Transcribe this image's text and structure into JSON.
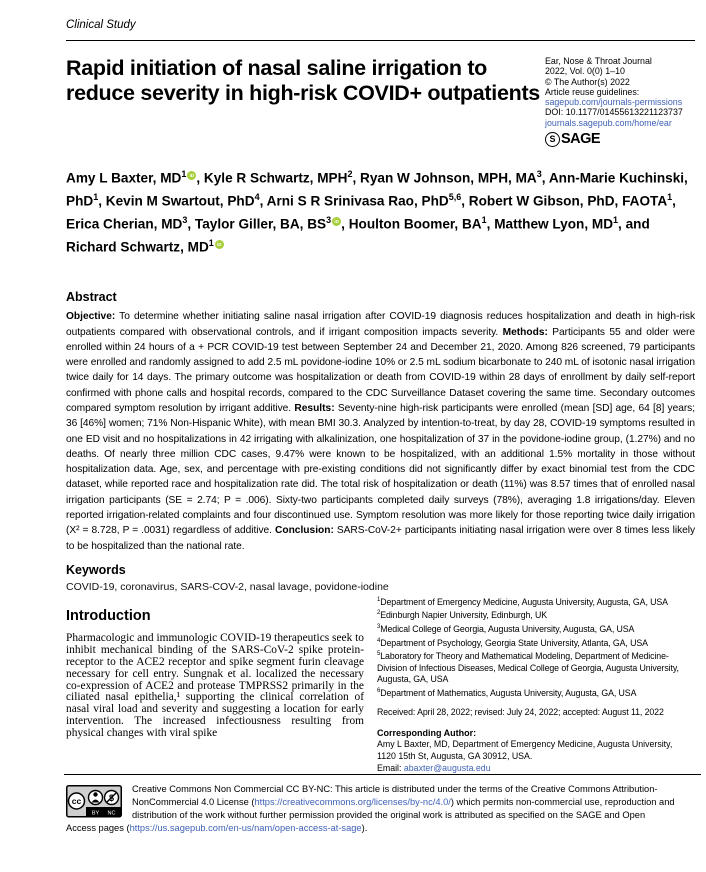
{
  "page": {
    "category_label": "Clinical Study"
  },
  "header": {
    "title": "Rapid initiation of nasal saline irrigation to reduce severity in high-risk COVID+ outpatients"
  },
  "journal_info": {
    "name": "Ear, Nose & Throat Journal",
    "volume": "2022, Vol. 0(0) 1–10",
    "copyright": "© The Author(s) 2022",
    "reuse_label": "Article reuse guidelines:",
    "reuse_link": "sagepub.com/journals-permissions",
    "doi": "DOI: 10.1177/01455613221123737",
    "home_link": "journals.sagepub.com/home/ear",
    "publisher": "SAGE",
    "publisher_mark": "S"
  },
  "authors": {
    "last_joiner": "and ",
    "list": [
      {
        "name": "Amy L Baxter, MD",
        "sup": "1",
        "orcid": true
      },
      {
        "name": "Kyle R Schwartz, MPH",
        "sup": "2",
        "orcid": false
      },
      {
        "name": "Ryan W Johnson, MPH, MA",
        "sup": "3",
        "orcid": false
      },
      {
        "name": "Ann-Marie Kuchinski, PhD",
        "sup": "1",
        "orcid": false
      },
      {
        "name": "Kevin M Swartout, PhD",
        "sup": "4",
        "orcid": false
      },
      {
        "name": "Arni S R Srinivasa Rao, PhD",
        "sup": "5,6",
        "orcid": false
      },
      {
        "name": "Robert W Gibson, PhD, FAOTA",
        "sup": "1",
        "orcid": false
      },
      {
        "name": "Erica Cherian, MD",
        "sup": "3",
        "orcid": false
      },
      {
        "name": "Taylor Giller, BA, BS",
        "sup": "3",
        "orcid": true
      },
      {
        "name": "Houlton Boomer, BA",
        "sup": "1",
        "orcid": false
      },
      {
        "name": "Matthew Lyon, MD",
        "sup": "1",
        "orcid": false
      },
      {
        "name": "Richard Schwartz, MD",
        "sup": "1",
        "orcid": true
      }
    ]
  },
  "abstract": {
    "heading": "Abstract",
    "segments": [
      {
        "label": "Objective:",
        "text": " To determine whether initiating saline nasal irrigation after COVID-19 diagnosis reduces hospitalization and death in high-risk outpatients compared with observational controls, and if irrigant composition impacts severity. "
      },
      {
        "label": "Methods:",
        "text": " Participants 55 and older were enrolled within 24 hours of a + PCR COVID-19 test between September 24 and December 21, 2020. Among 826 screened, 79 participants were enrolled and randomly assigned to add 2.5 mL povidone-iodine 10% or 2.5 mL sodium bicarbonate to 240 mL of isotonic nasal irrigation twice daily for 14 days. The primary outcome was hospitalization or death from COVID-19 within 28 days of enrollment by daily self-report confirmed with phone calls and hospital records, compared to the CDC Surveillance Dataset covering the same time. Secondary outcomes compared symptom resolution by irrigant additive. "
      },
      {
        "label": "Results:",
        "text": " Seventy-nine high-risk participants were enrolled (mean [SD] age, 64 [8] years; 36 [46%] women; 71% Non-Hispanic White), with mean BMI 30.3. Analyzed by intention-to-treat, by day 28, COVID-19 symptoms resulted in one ED visit and no hospitalizations in 42 irrigating with alkalinization, one hospitalization of 37 in the povidone-iodine group, (1.27%) and no deaths. Of nearly three million CDC cases, 9.47% were known to be hospitalized, with an additional 1.5% mortality in those without hospitalization data. Age, sex, and percentage with pre-existing conditions did not significantly differ by exact binomial test from the CDC dataset, while reported race and hospitalization rate did. The total risk of hospitalization or death (11%) was 8.57 times that of enrolled nasal irrigation participants (SE = 2.74; P = .006). Sixty-two participants completed daily surveys (78%), averaging 1.8 irrigations/day. Eleven reported irrigation-related complaints and four discontinued use. Symptom resolution was more likely for those reporting twice daily irrigation (X² = 8.728, P = .0031) regardless of additive. "
      },
      {
        "label": "Conclusion:",
        "text": " SARS-CoV-2+ participants initiating nasal irrigation were over 8 times less likely to be hospitalized than the national rate."
      }
    ]
  },
  "keywords": {
    "heading": "Keywords",
    "text": "COVID-19, coronavirus, SARS-COV-2, nasal lavage, povidone-iodine"
  },
  "introduction": {
    "heading": "Introduction",
    "paragraph": "Pharmacologic and immunologic COVID-19 therapeutics seek to inhibit mechanical binding of the SARS-CoV-2 spike protein-receptor to the ACE2 receptor and spike segment furin cleavage necessary for cell entry. Sungnak et al. localized the necessary co-expression of ACE2 and protease TMPRSS2 primarily in the ciliated nasal epithelia,¹ supporting the clinical correlation of nasal viral load and severity and suggesting a location for early intervention. The increased infectiousness resulting from physical changes with viral spike"
  },
  "affiliations": [
    {
      "sup": "1",
      "text": "Department of Emergency Medicine, Augusta University, Augusta, GA, USA"
    },
    {
      "sup": "2",
      "text": "Edinburgh Napier University, Edinburgh, UK"
    },
    {
      "sup": "3",
      "text": "Medical College of Georgia, Augusta University, Augusta, GA, USA"
    },
    {
      "sup": "4",
      "text": "Department of Psychology, Georgia State University, Atlanta, GA, USA"
    },
    {
      "sup": "5",
      "text": "Laboratory for Theory and Mathematical Modeling, Department of Medicine-Division of Infectious Diseases, Medical College of Georgia, Augusta University, Augusta, GA, USA"
    },
    {
      "sup": "6",
      "text": "Department of Mathematics, Augusta University, Augusta, GA, USA"
    }
  ],
  "dates": {
    "received": "Received: April 28, 2022; revised: July 24, 2022; accepted: August 11, 2022"
  },
  "corresponding": {
    "heading": "Corresponding Author:",
    "text": "Amy L Baxter, MD, Department of Emergency Medicine, Augusta University, 1120 15th St, Augusta, GA 30912, USA.",
    "email_label": "Email: ",
    "email": "abaxter@augusta.edu"
  },
  "footer": {
    "badge_by": "BY",
    "badge_nc": "NC",
    "license_parts": [
      {
        "text": "Creative Commons Non Commercial CC BY-NC: This article is distributed under the terms of the Creative Commons Attribution-NonCommercial 4.0 License ("
      },
      {
        "link": "https://creativecommons.org/licenses/by-nc/4.0/"
      },
      {
        "text": ") which permits non-commercial use, reproduction and distribution of the work without further permission provided the original work is attributed as specified on the SAGE and Open Access pages ("
      },
      {
        "link": "https://us.sagepub.com/en-us/nam/open-access-at-sage"
      },
      {
        "text": ")."
      }
    ]
  }
}
